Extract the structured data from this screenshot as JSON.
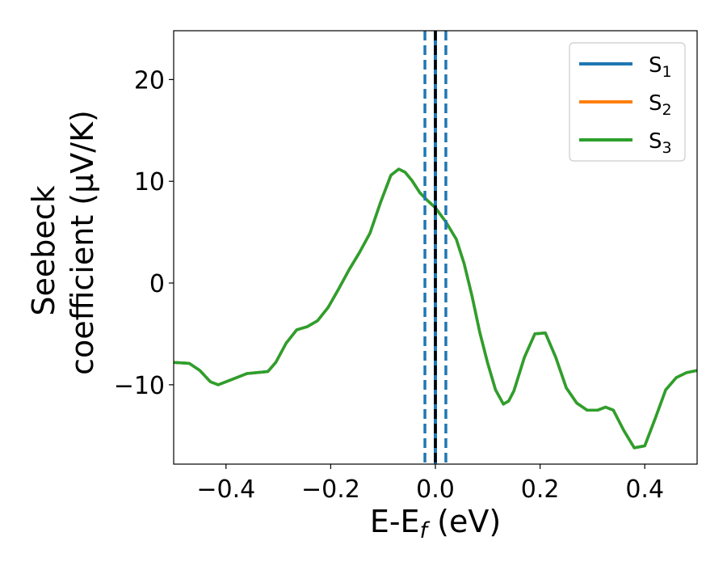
{
  "chart_data": {
    "type": "line",
    "xlabel": "E-E",
    "xlabel_sub": "f",
    "xlabel_unit": " (eV)",
    "ylabel_line1": "Seebeck",
    "ylabel_line2": "coefficient  (μV/K)",
    "xlim": [
      -0.5,
      0.5
    ],
    "ylim": [
      -17.8,
      24.8
    ],
    "x_ticks": [
      -0.4,
      -0.2,
      0.0,
      0.2,
      0.4
    ],
    "x_tick_labels": [
      "−0.4",
      "−0.2",
      "0.0",
      "0.2",
      "0.4"
    ],
    "y_ticks": [
      -10,
      0,
      10,
      20
    ],
    "y_tick_labels": [
      "−10",
      "0",
      "10",
      "20"
    ],
    "grid": false,
    "legend_position": "top-right",
    "series": [
      {
        "name": "S",
        "sub": "1",
        "color": "#1f77b4",
        "x": [
          -0.5,
          -0.47,
          -0.45,
          -0.43,
          -0.415,
          -0.39,
          -0.36,
          -0.34,
          -0.32,
          -0.305,
          -0.285,
          -0.265,
          -0.245,
          -0.225,
          -0.205,
          -0.185,
          -0.165,
          -0.145,
          -0.125,
          -0.105,
          -0.085,
          -0.07,
          -0.058,
          -0.045,
          -0.03,
          -0.015,
          0.0,
          0.02,
          0.04,
          0.055,
          0.07,
          0.085,
          0.1,
          0.115,
          0.13,
          0.14,
          0.15,
          0.17,
          0.19,
          0.21,
          0.23,
          0.25,
          0.27,
          0.29,
          0.31,
          0.325,
          0.34,
          0.36,
          0.38,
          0.4,
          0.42,
          0.44,
          0.46,
          0.48,
          0.5
        ],
        "y": [
          -7.8,
          -7.9,
          -8.6,
          -9.7,
          -10.0,
          -9.5,
          -8.9,
          -8.8,
          -8.7,
          -7.8,
          -5.9,
          -4.6,
          -4.3,
          -3.7,
          -2.4,
          -0.6,
          1.3,
          3.0,
          4.9,
          7.9,
          10.6,
          11.2,
          10.9,
          10.1,
          8.9,
          8.1,
          7.4,
          6.0,
          4.3,
          1.9,
          -1.3,
          -4.9,
          -7.9,
          -10.5,
          -11.9,
          -11.6,
          -10.6,
          -7.3,
          -5.0,
          -4.9,
          -7.3,
          -10.3,
          -11.8,
          -12.5,
          -12.5,
          -12.2,
          -12.5,
          -14.5,
          -16.2,
          -16.0,
          -13.3,
          -10.5,
          -9.3,
          -8.8,
          -8.6
        ]
      },
      {
        "name": "S",
        "sub": "2",
        "color": "#ff7f0e",
        "x": [
          -0.5,
          -0.47,
          -0.45,
          -0.43,
          -0.415,
          -0.39,
          -0.36,
          -0.34,
          -0.32,
          -0.305,
          -0.285,
          -0.265,
          -0.245,
          -0.225,
          -0.205,
          -0.185,
          -0.165,
          -0.145,
          -0.125,
          -0.105,
          -0.085,
          -0.07,
          -0.058,
          -0.045,
          -0.03,
          -0.015,
          0.0,
          0.02,
          0.04,
          0.055,
          0.07,
          0.085,
          0.1,
          0.115,
          0.13,
          0.14,
          0.15,
          0.17,
          0.19,
          0.21,
          0.23,
          0.25,
          0.27,
          0.29,
          0.31,
          0.325,
          0.34,
          0.36,
          0.38,
          0.4,
          0.42,
          0.44,
          0.46,
          0.48,
          0.5
        ],
        "y": [
          -7.8,
          -7.9,
          -8.6,
          -9.7,
          -10.0,
          -9.5,
          -8.9,
          -8.8,
          -8.7,
          -7.8,
          -5.9,
          -4.6,
          -4.3,
          -3.7,
          -2.4,
          -0.6,
          1.3,
          3.0,
          4.9,
          7.9,
          10.6,
          11.2,
          10.9,
          10.1,
          8.9,
          8.1,
          7.4,
          6.0,
          4.3,
          1.9,
          -1.3,
          -4.9,
          -7.9,
          -10.5,
          -11.9,
          -11.6,
          -10.6,
          -7.3,
          -5.0,
          -4.9,
          -7.3,
          -10.3,
          -11.8,
          -12.5,
          -12.5,
          -12.2,
          -12.5,
          -14.5,
          -16.2,
          -16.0,
          -13.3,
          -10.5,
          -9.3,
          -8.8,
          -8.6
        ]
      },
      {
        "name": "S",
        "sub": "3",
        "color": "#2ca02c",
        "x": [
          -0.5,
          -0.47,
          -0.45,
          -0.43,
          -0.415,
          -0.39,
          -0.36,
          -0.34,
          -0.32,
          -0.305,
          -0.285,
          -0.265,
          -0.245,
          -0.225,
          -0.205,
          -0.185,
          -0.165,
          -0.145,
          -0.125,
          -0.105,
          -0.085,
          -0.07,
          -0.058,
          -0.045,
          -0.03,
          -0.015,
          0.0,
          0.02,
          0.04,
          0.055,
          0.07,
          0.085,
          0.1,
          0.115,
          0.13,
          0.14,
          0.15,
          0.17,
          0.19,
          0.21,
          0.23,
          0.25,
          0.27,
          0.29,
          0.31,
          0.325,
          0.34,
          0.36,
          0.38,
          0.4,
          0.42,
          0.44,
          0.46,
          0.48,
          0.5
        ],
        "y": [
          -7.8,
          -7.9,
          -8.6,
          -9.7,
          -10.0,
          -9.5,
          -8.9,
          -8.8,
          -8.7,
          -7.8,
          -5.9,
          -4.6,
          -4.3,
          -3.7,
          -2.4,
          -0.6,
          1.3,
          3.0,
          4.9,
          7.9,
          10.6,
          11.2,
          10.9,
          10.1,
          8.9,
          8.1,
          7.4,
          6.0,
          4.3,
          1.9,
          -1.3,
          -4.9,
          -7.9,
          -10.5,
          -11.9,
          -11.6,
          -10.6,
          -7.3,
          -5.0,
          -4.9,
          -7.3,
          -10.3,
          -11.8,
          -12.5,
          -12.5,
          -12.2,
          -12.5,
          -14.5,
          -16.2,
          -16.0,
          -13.3,
          -10.5,
          -9.3,
          -8.8,
          -8.6
        ]
      }
    ],
    "vertical_lines": [
      {
        "x": -0.02,
        "style": "dashed",
        "color": "#1f77b4"
      },
      {
        "x": 0.02,
        "style": "dashed",
        "color": "#1f77b4"
      },
      {
        "x": 0.0,
        "style": "solid",
        "color": "#1f77b4"
      },
      {
        "x": 0.0,
        "style": "dashed",
        "color": "#000000"
      }
    ]
  }
}
